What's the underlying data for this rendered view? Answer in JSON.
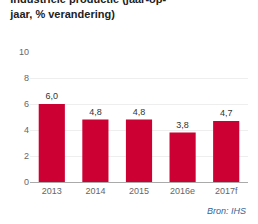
{
  "chart_data": {
    "type": "bar",
    "title": "Industriële productie (jaar-op-\njaar, % verandering)",
    "categories": [
      "2013",
      "2014",
      "2015",
      "2016e",
      "2017f"
    ],
    "values": [
      6.0,
      4.8,
      4.8,
      3.8,
      4.7
    ],
    "value_labels": [
      "6,0",
      "4,8",
      "4,8",
      "3,8",
      "4,7"
    ],
    "data_labels": true,
    "color": "#cc0033",
    "ylim": [
      0,
      10
    ],
    "yticks": [
      0,
      2,
      4,
      6,
      8,
      10
    ],
    "grid": true,
    "annotations": [
      "Bron: IHS"
    ]
  }
}
